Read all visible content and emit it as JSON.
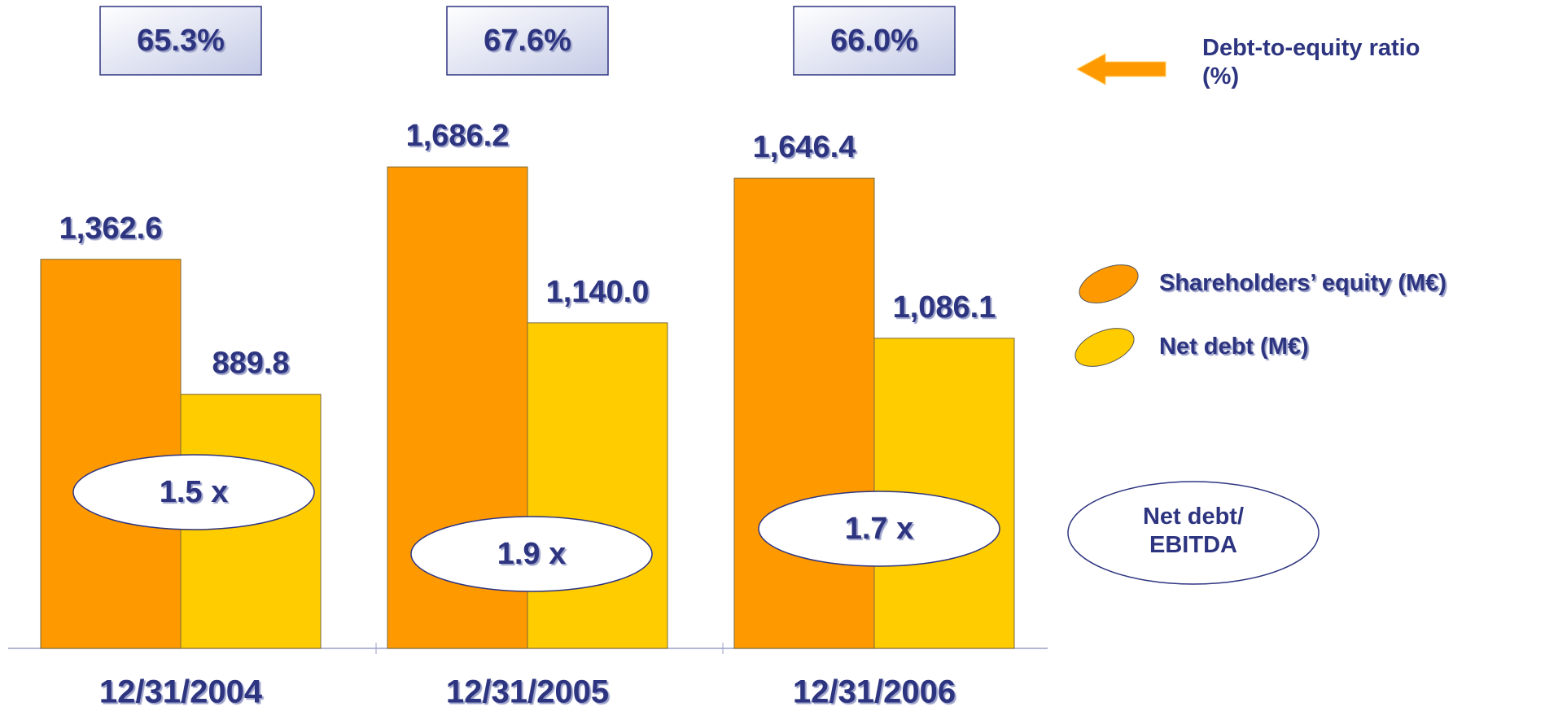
{
  "chart_data": {
    "type": "bar",
    "categories": [
      "12/31/2004",
      "12/31/2005",
      "12/31/2006"
    ],
    "series": [
      {
        "name": "Shareholders’ equity (M€)",
        "color": "#ff9900",
        "values": [
          1362.6,
          1686.2,
          1646.4
        ],
        "value_labels": [
          "1,362.6",
          "1,686.2",
          "1,646.4"
        ]
      },
      {
        "name": "Net debt (M€)",
        "color": "#ffcc00",
        "values": [
          889.8,
          1140.0,
          1086.1
        ],
        "value_labels": [
          "889.8",
          "1,140.0",
          "1,086.1"
        ]
      }
    ],
    "debt_to_equity": {
      "name": "Debt-to-equity ratio (%)",
      "values": [
        65.3,
        67.6,
        66.0
      ],
      "value_labels": [
        "65.3%",
        "67.6%",
        "66.0%"
      ]
    },
    "net_debt_ebitda": {
      "name": "Net debt/ EBITDA",
      "values": [
        1.5,
        1.9,
        1.7
      ],
      "value_labels": [
        "1.5 x",
        "1.9 x",
        "1.7 x"
      ]
    }
  }
}
